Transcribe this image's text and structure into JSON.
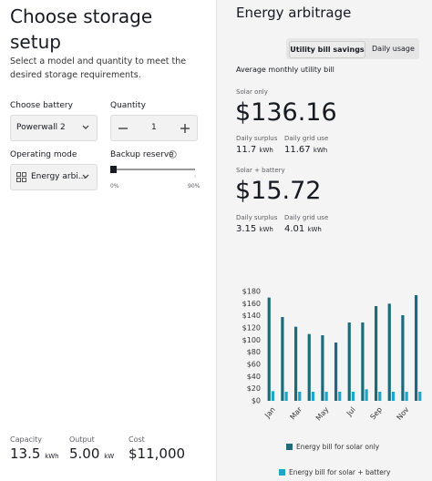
{
  "left_panel": {
    "title": "Choose storage setup",
    "subtitle": "Select a model and quantity to meet the desired storage requirements.",
    "battery": {
      "label": "Choose battery",
      "value": "Powerwall 2"
    },
    "quantity": {
      "label": "Quantity",
      "value": 1
    },
    "operating_mode": {
      "label": "Operating mode",
      "value": "Energy arbi..."
    },
    "backup_reserve": {
      "label": "Backup reserve",
      "min_label": "0%",
      "max_label": "90%"
    },
    "summary": [
      {
        "label": "Capacity",
        "value": "13.5",
        "unit": "kWh"
      },
      {
        "label": "Output",
        "value": "5.00",
        "unit": "kW"
      },
      {
        "label": "Cost",
        "value": "$11,000"
      }
    ]
  },
  "right_panel": {
    "title": "Energy arbitrage",
    "tabs": [
      "Utility bill savings",
      "Daily usage"
    ],
    "heading": "Average monthly utility bill",
    "solar_only": {
      "label": "Solar only",
      "amount": "$136.16",
      "stats": [
        {
          "label": "Daily surplus",
          "value": "11.7",
          "unit": "kWh"
        },
        {
          "label": "Daily grid use",
          "value": "11.67",
          "unit": "kWh"
        }
      ]
    },
    "solar_battery": {
      "label": "Solar + battery",
      "amount": "$15.72",
      "stats": [
        {
          "label": "Daily surplus",
          "value": "3.15",
          "unit": "kWh"
        },
        {
          "label": "Daily grid use",
          "value": "4.01",
          "unit": "kWh"
        }
      ]
    }
  },
  "chart_data": {
    "type": "bar",
    "categories": [
      "Jan",
      null,
      "Mar",
      null,
      "May",
      null,
      "Jul",
      null,
      "Sep",
      null,
      "Nov",
      null
    ],
    "series": [
      {
        "name": "Energy bill for solar only",
        "color": "#1d6a7a",
        "values": [
          170,
          138,
          122,
          110,
          108,
          96,
          129,
          129,
          156,
          160,
          141,
          174
        ]
      },
      {
        "name": "Energy bill for solar + battery",
        "color": "#1ba6cc",
        "values": [
          16,
          15,
          15,
          15,
          15,
          15,
          15,
          19,
          15,
          15,
          15,
          15
        ]
      }
    ],
    "ylim": [
      0,
      180
    ],
    "yticks": [
      {
        "value": 0,
        "label": "$0"
      },
      {
        "value": 20,
        "label": "$20"
      },
      {
        "value": 40,
        "label": "$40"
      },
      {
        "value": 60,
        "label": "$60"
      },
      {
        "value": 80,
        "label": "$80"
      },
      {
        "value": 100,
        "label": "$100"
      },
      {
        "value": 120,
        "label": "$120"
      },
      {
        "value": 140,
        "label": "$140"
      },
      {
        "value": 160,
        "label": "$160"
      },
      {
        "value": 180,
        "label": "$180"
      }
    ]
  }
}
